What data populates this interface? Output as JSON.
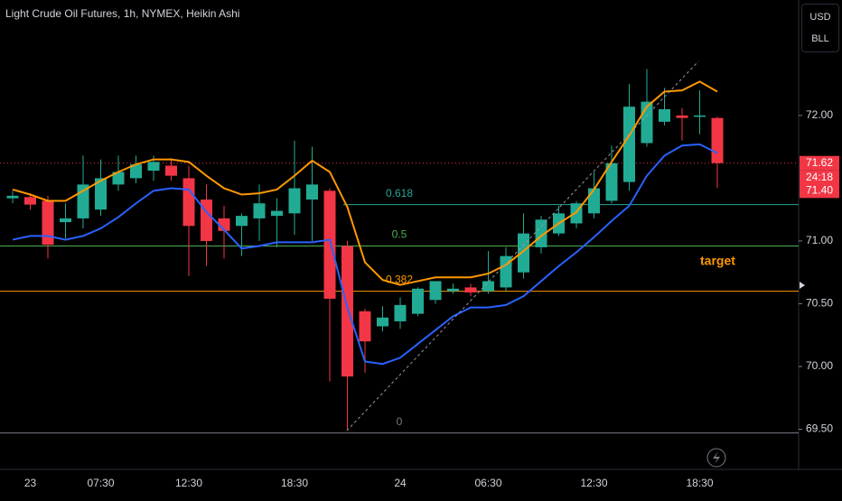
{
  "chart_data": {
    "type": "candlestick",
    "title": "Light Crude Oil Futures, 1h, NYMEX, Heikin Ashi",
    "currency": "USD",
    "unit": "BLL",
    "categories": [
      null,
      "23",
      null,
      null,
      null,
      "07:30",
      null,
      null,
      null,
      null,
      "12:30",
      null,
      null,
      null,
      null,
      null,
      "18:30",
      null,
      null,
      null,
      null,
      null,
      "24",
      null,
      null,
      null,
      null,
      "06:30",
      null,
      null,
      null,
      null,
      null,
      "12:30",
      null,
      null,
      null,
      null,
      null,
      "18:30",
      null
    ],
    "open": [
      71.34,
      71.35,
      71.32,
      71.15,
      71.18,
      71.25,
      71.45,
      71.5,
      71.56,
      71.6,
      71.5,
      71.33,
      71.18,
      71.12,
      71.18,
      71.2,
      71.22,
      71.33,
      71.4,
      70.96,
      70.44,
      70.32,
      70.36,
      70.42,
      70.53,
      70.6,
      70.63,
      70.6,
      70.63,
      70.75,
      70.95,
      71.06,
      71.14,
      71.22,
      71.32,
      71.47,
      71.78,
      71.95,
      72.0,
      71.99,
      71.98
    ],
    "high": [
      71.4,
      71.38,
      71.36,
      71.3,
      71.68,
      71.65,
      71.68,
      71.68,
      71.68,
      71.66,
      71.6,
      71.45,
      71.28,
      71.22,
      71.45,
      71.34,
      71.8,
      71.75,
      71.42,
      71.0,
      70.46,
      70.48,
      70.55,
      70.63,
      70.68,
      70.66,
      70.66,
      70.92,
      70.95,
      71.22,
      71.2,
      71.28,
      71.32,
      71.55,
      71.76,
      72.25,
      72.37,
      72.22,
      72.06,
      72.2,
      71.99
    ],
    "low": [
      71.3,
      71.25,
      70.86,
      71.02,
      71.1,
      71.2,
      71.4,
      71.46,
      71.48,
      71.48,
      70.72,
      70.8,
      70.86,
      70.88,
      71.0,
      70.95,
      71.05,
      71.0,
      69.88,
      69.5,
      69.95,
      70.28,
      70.3,
      70.4,
      70.5,
      70.58,
      70.56,
      70.58,
      70.6,
      70.7,
      70.9,
      71.04,
      71.1,
      71.18,
      71.3,
      71.4,
      71.75,
      71.92,
      71.8,
      71.85,
      71.42
    ],
    "close": [
      71.36,
      71.29,
      70.97,
      71.18,
      71.45,
      71.5,
      71.55,
      71.61,
      71.63,
      71.52,
      71.12,
      71.0,
      71.08,
      71.2,
      71.3,
      71.24,
      71.42,
      71.45,
      70.54,
      69.92,
      70.2,
      70.39,
      70.49,
      70.62,
      70.68,
      70.62,
      70.59,
      70.68,
      70.88,
      71.06,
      71.17,
      71.22,
      71.3,
      71.42,
      71.62,
      72.07,
      72.11,
      72.05,
      71.98,
      72.0,
      71.62
    ],
    "up_color": "#22ab94",
    "down_color": "#f23645",
    "series": [
      {
        "color": "#ff9800",
        "values": [
          71.41,
          71.37,
          71.32,
          71.32,
          71.4,
          71.48,
          71.55,
          71.61,
          71.65,
          71.65,
          71.63,
          71.52,
          71.42,
          71.37,
          71.38,
          71.41,
          71.52,
          71.64,
          71.55,
          71.27,
          70.83,
          70.69,
          70.65,
          70.68,
          70.71,
          70.71,
          70.71,
          70.74,
          70.81,
          70.92,
          71.04,
          71.14,
          71.23,
          71.41,
          71.63,
          71.84,
          72.07,
          72.19,
          72.2,
          72.27,
          72.19
        ]
      },
      {
        "color": "#2962ff",
        "values": [
          71.01,
          71.04,
          71.04,
          71.01,
          71.04,
          71.1,
          71.19,
          71.3,
          71.4,
          71.42,
          71.41,
          71.23,
          71.09,
          70.94,
          70.96,
          70.99,
          70.99,
          70.99,
          71.01,
          70.47,
          70.04,
          70.02,
          70.07,
          70.18,
          70.29,
          70.4,
          70.47,
          70.47,
          70.49,
          70.56,
          70.68,
          70.8,
          70.91,
          71.03,
          71.16,
          71.28,
          71.52,
          71.68,
          71.76,
          71.77,
          71.7
        ]
      }
    ],
    "ylim": [
      69.18,
      72.92
    ],
    "yticks": [
      {
        "value": 72,
        "label": "72.00"
      },
      {
        "value": 71,
        "label": "71.00"
      },
      {
        "value": 70.5,
        "label": "70.50"
      },
      {
        "value": 70,
        "label": "70.00"
      },
      {
        "value": 69.5,
        "label": "69.50"
      }
    ],
    "fib_levels": [
      {
        "ratio": 0.618,
        "price": 71.29,
        "color": "#26a69a"
      },
      {
        "ratio": 0.5,
        "price": 70.96,
        "color": "#4caf50"
      },
      {
        "ratio": 0.382,
        "price": 70.6,
        "color": "#ff9800"
      },
      {
        "ratio": 0,
        "price": 69.47,
        "color": "#787b86"
      }
    ],
    "last_price": 71.62,
    "countdown": "24:18",
    "price_marker": {
      "value": 71.4,
      "label": "71.40"
    },
    "annotation": "target"
  }
}
